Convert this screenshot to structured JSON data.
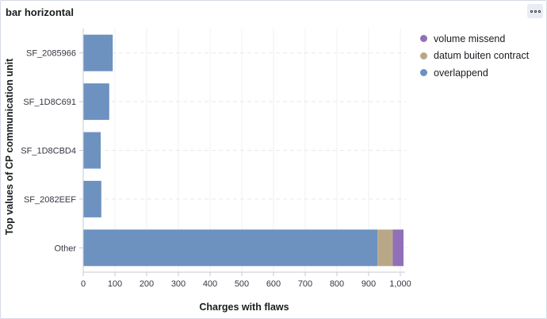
{
  "panel": {
    "title": "bar horizontal",
    "options_icon": "more-options-icon"
  },
  "chart_data": {
    "type": "bar",
    "orientation": "horizontal",
    "stacked": true,
    "categories": [
      "SF_2085966",
      "SF_1D8C691",
      "SF_1D8CBD4",
      "SF_2082EEF",
      "Other"
    ],
    "series": [
      {
        "name": "overlappend",
        "color": "#6d92c0",
        "values": [
          93,
          82,
          55,
          57,
          928
        ]
      },
      {
        "name": "datum buiten contract",
        "color": "#b9a888",
        "values": [
          0,
          0,
          0,
          0,
          48
        ]
      },
      {
        "name": "volume missend",
        "color": "#9170b8",
        "values": [
          0,
          0,
          0,
          0,
          34
        ]
      }
    ],
    "xlabel": "Charges with flaws",
    "ylabel": "Top values of CP communication unit",
    "xlim": [
      0,
      1000
    ],
    "xticks": [
      0,
      100,
      200,
      300,
      400,
      500,
      600,
      700,
      800,
      900,
      1000
    ],
    "xtick_labels": [
      "0",
      "100",
      "200",
      "300",
      "400",
      "500",
      "600",
      "700",
      "800",
      "900",
      "1,000"
    ],
    "grid": true,
    "legend_position": "top-right",
    "legend_order": [
      "volume missend",
      "datum buiten contract",
      "overlappend"
    ]
  }
}
